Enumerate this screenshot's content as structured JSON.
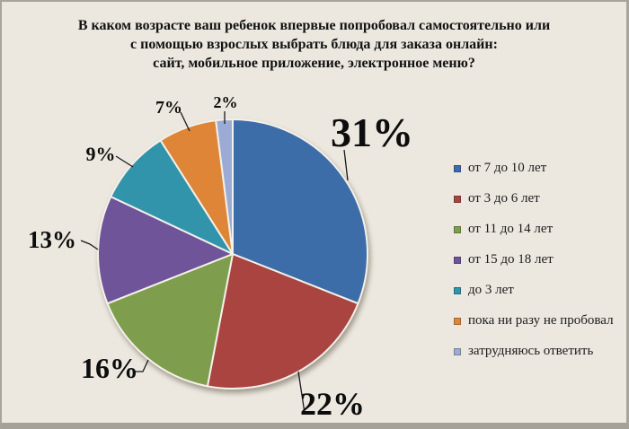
{
  "title": "В каком возрасте ваш ребенок впервые попробовал самостоятельно или\nс помощью взрослых выбрать блюда для заказа онлайн:\nсайт, мобильное приложение, электронное меню?",
  "chart_data": {
    "type": "pie",
    "title": "В каком возрасте ваш ребенок впервые попробовал самостоятельно или с помощью взрослых выбрать блюда для заказа онлайн: сайт, мобильное приложение, электронное меню?",
    "labels": [
      "от 7 до 10 лет",
      "от 3 до 6 лет",
      "от 11 до 14 лет",
      "от 15 до 18 лет",
      "до 3 лет",
      "пока ни разу не пробовал",
      "затрудняюсь ответить"
    ],
    "values": [
      31,
      22,
      16,
      13,
      9,
      7,
      2
    ],
    "unit": "%",
    "colors": [
      "#3c6da9",
      "#a94440",
      "#7e9e4d",
      "#6f5499",
      "#3294aa",
      "#de8537",
      "#9cabd5"
    ],
    "start_angle_deg": 0,
    "direction": "clockwise",
    "legend_position": "right",
    "background": "#ece8df",
    "label_color": "#0d0d0d"
  }
}
